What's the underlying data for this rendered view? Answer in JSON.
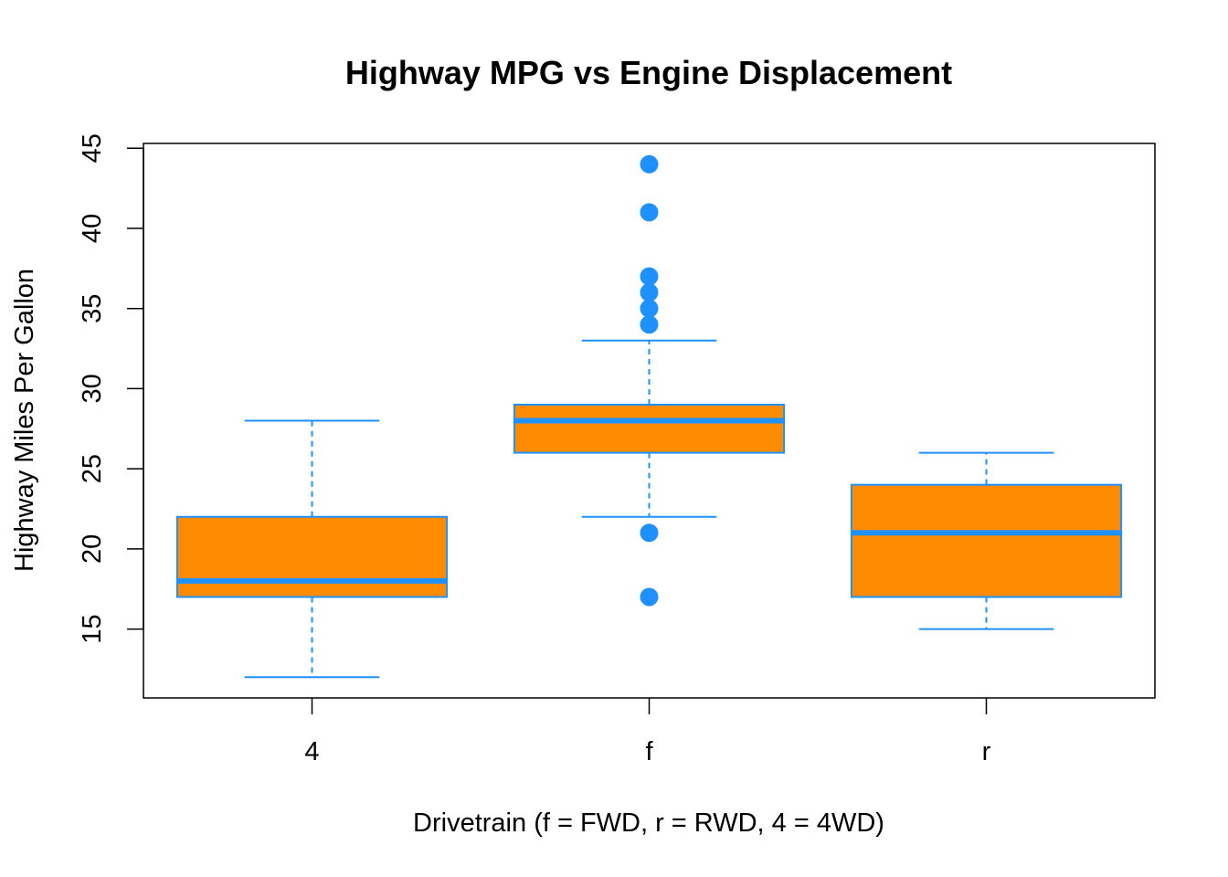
{
  "chart_data": {
    "type": "box",
    "title": "Highway MPG vs Engine Displacement",
    "xlabel": "Drivetrain (f = FWD, r = RWD, 4 = 4WD)",
    "ylabel": "Highway Miles Per Gallon",
    "categories": [
      "4",
      "f",
      "r"
    ],
    "ylim": [
      10.7,
      45.3
    ],
    "yticks": [
      15,
      20,
      25,
      30,
      35,
      40,
      45
    ],
    "grid": false,
    "box_fill_color": "#FF8C00",
    "line_color": "#1E90FF",
    "boxes": [
      {
        "category": "4",
        "whisker_low": 12,
        "q1": 17,
        "median": 18,
        "q3": 22,
        "whisker_high": 28,
        "outliers": []
      },
      {
        "category": "f",
        "whisker_low": 22,
        "q1": 26,
        "median": 28,
        "q3": 29,
        "whisker_high": 33,
        "outliers": [
          17,
          21,
          34,
          35,
          36,
          37,
          41,
          44
        ]
      },
      {
        "category": "r",
        "whisker_low": 15,
        "q1": 17,
        "median": 21,
        "q3": 24,
        "whisker_high": 26,
        "outliers": []
      }
    ]
  }
}
